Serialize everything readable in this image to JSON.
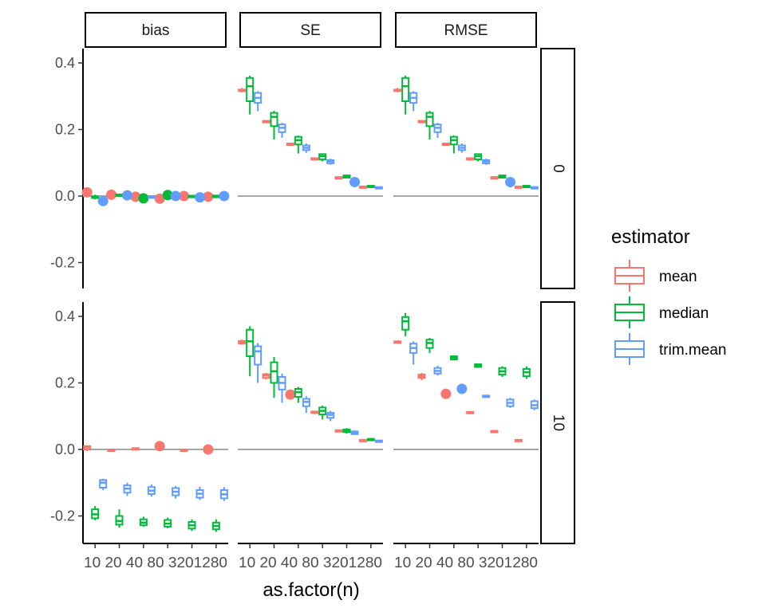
{
  "chart_data": {
    "type": "boxplot",
    "xlabel": "as.factor(n)",
    "ylabel": "",
    "categories": [
      "10",
      "20",
      "40",
      "80",
      "320",
      "1280"
    ],
    "x_tick_text": "10 20 40 80 3201280",
    "ylim": [
      -0.28,
      0.42
    ],
    "yticks": [
      0.4,
      0.2,
      0.0,
      -0.2
    ],
    "ytick_labels": [
      "0.4",
      "0.2",
      "0.0",
      "-0.2"
    ],
    "reference_line": 0,
    "col_facets": [
      "bias",
      "SE",
      "RMSE"
    ],
    "row_facets": [
      "0",
      "10"
    ],
    "legend": {
      "title": "estimator",
      "position": "right",
      "entries": [
        {
          "name": "mean",
          "color": "#F8766D"
        },
        {
          "name": "median",
          "color": "#00BA38"
        },
        {
          "name": "trim.mean",
          "color": "#619CFF"
        }
      ]
    },
    "panels": [
      {
        "col": "bias",
        "row": "0",
        "series": [
          {
            "name": "mean",
            "boxes": [
              [
                0.011,
                0.011,
                0.011,
                0.011,
                0.011
              ],
              [
                0.004,
                0.004,
                0.004,
                0.004,
                0.004
              ],
              [
                -0.002,
                -0.002,
                -0.002,
                -0.002,
                -0.002
              ],
              [
                -0.008,
                -0.008,
                -0.008,
                -0.008,
                -0.008
              ],
              [
                0.0,
                0.0,
                0.0,
                0.0,
                0.0
              ],
              [
                -0.002,
                -0.002,
                -0.002,
                -0.002,
                -0.002
              ]
            ]
          },
          {
            "name": "median",
            "boxes": [
              [
                -0.01,
                -0.006,
                -0.004,
                -0.001,
                0.004
              ],
              [
                0.003,
                0.003,
                0.004,
                0.005,
                0.006
              ],
              [
                -0.007,
                -0.007,
                -0.007,
                -0.007,
                -0.007
              ],
              [
                0.003,
                0.003,
                0.003,
                0.003,
                0.003
              ],
              [
                -0.001,
                -0.001,
                0.0,
                0.001,
                0.002
              ],
              [
                0.0,
                0.0,
                0.001,
                0.001,
                0.002
              ]
            ]
          },
          {
            "name": "trim.mean",
            "boxes": [
              [
                -0.015,
                -0.015,
                -0.015,
                -0.015,
                -0.015
              ],
              [
                0.002,
                0.002,
                0.002,
                0.003,
                0.003
              ],
              [
                -0.002,
                -0.002,
                -0.001,
                -0.001,
                0.0
              ],
              [
                0.0,
                0.0,
                0.0,
                0.001,
                0.001
              ],
              [
                -0.004,
                -0.004,
                -0.004,
                -0.004,
                -0.004
              ],
              [
                0.0,
                0.0,
                0.0,
                0.001,
                0.001
              ]
            ]
          }
        ]
      },
      {
        "col": "SE",
        "row": "0",
        "series": [
          {
            "name": "mean",
            "boxes": [
              [
                0.312,
                0.316,
                0.318,
                0.32,
                0.325
              ],
              [
                0.22,
                0.222,
                0.224,
                0.226,
                0.228
              ],
              [
                0.152,
                0.154,
                0.156,
                0.158,
                0.16
              ],
              [
                0.108,
                0.11,
                0.112,
                0.114,
                0.116
              ],
              [
                0.054,
                0.055,
                0.056,
                0.057,
                0.058
              ],
              [
                0.026,
                0.027,
                0.028,
                0.029,
                0.03
              ]
            ]
          },
          {
            "name": "median",
            "boxes": [
              [
                0.245,
                0.285,
                0.33,
                0.355,
                0.362
              ],
              [
                0.17,
                0.21,
                0.238,
                0.25,
                0.256
              ],
              [
                0.128,
                0.155,
                0.168,
                0.178,
                0.182
              ],
              [
                0.104,
                0.11,
                0.12,
                0.126,
                0.128
              ],
              [
                0.054,
                0.055,
                0.058,
                0.062,
                0.064
              ],
              [
                0.026,
                0.027,
                0.029,
                0.031,
                0.032
              ]
            ]
          },
          {
            "name": "trim.mean",
            "boxes": [
              [
                0.255,
                0.28,
                0.295,
                0.31,
                0.315
              ],
              [
                0.175,
                0.192,
                0.205,
                0.215,
                0.22
              ],
              [
                0.13,
                0.138,
                0.145,
                0.152,
                0.158
              ],
              [
                0.094,
                0.098,
                0.104,
                0.108,
                0.112
              ],
              [
                0.042,
                0.042,
                0.042,
                0.042,
                0.042
              ],
              [
                0.024,
                0.025,
                0.026,
                0.027,
                0.028
              ]
            ]
          }
        ]
      },
      {
        "col": "RMSE",
        "row": "0",
        "series": [
          {
            "name": "mean",
            "boxes": [
              [
                0.312,
                0.316,
                0.318,
                0.32,
                0.325
              ],
              [
                0.22,
                0.222,
                0.224,
                0.226,
                0.228
              ],
              [
                0.152,
                0.154,
                0.156,
                0.158,
                0.16
              ],
              [
                0.108,
                0.11,
                0.112,
                0.114,
                0.116
              ],
              [
                0.054,
                0.055,
                0.056,
                0.057,
                0.058
              ],
              [
                0.026,
                0.027,
                0.028,
                0.029,
                0.03
              ]
            ]
          },
          {
            "name": "median",
            "boxes": [
              [
                0.245,
                0.285,
                0.33,
                0.355,
                0.362
              ],
              [
                0.17,
                0.21,
                0.238,
                0.25,
                0.256
              ],
              [
                0.128,
                0.155,
                0.168,
                0.178,
                0.182
              ],
              [
                0.104,
                0.11,
                0.12,
                0.126,
                0.128
              ],
              [
                0.054,
                0.055,
                0.058,
                0.062,
                0.064
              ],
              [
                0.026,
                0.027,
                0.029,
                0.031,
                0.032
              ]
            ]
          },
          {
            "name": "trim.mean",
            "boxes": [
              [
                0.255,
                0.28,
                0.295,
                0.31,
                0.315
              ],
              [
                0.175,
                0.192,
                0.205,
                0.215,
                0.22
              ],
              [
                0.13,
                0.138,
                0.145,
                0.152,
                0.158
              ],
              [
                0.094,
                0.098,
                0.104,
                0.108,
                0.112
              ],
              [
                0.042,
                0.042,
                0.042,
                0.042,
                0.042
              ],
              [
                0.024,
                0.025,
                0.026,
                0.027,
                0.028
              ]
            ]
          }
        ]
      },
      {
        "col": "bias",
        "row": "10",
        "series": [
          {
            "name": "mean",
            "boxes": [
              [
                -0.005,
                0.0,
                0.006,
                0.01,
                0.012
              ],
              [
                -0.003,
                -0.002,
                -0.001,
                0.0,
                0.0
              ],
              [
                0.002,
                0.003,
                0.003,
                0.004,
                0.004
              ],
              [
                0.01,
                0.01,
                0.01,
                0.01,
                0.01
              ],
              [
                -0.002,
                -0.001,
                -0.001,
                0.0,
                0.0
              ],
              [
                0.0,
                0.0,
                0.0,
                0.0,
                0.0
              ]
            ]
          },
          {
            "name": "median",
            "boxes": [
              [
                -0.213,
                -0.207,
                -0.195,
                -0.18,
                -0.17
              ],
              [
                -0.235,
                -0.226,
                -0.215,
                -0.2,
                -0.18
              ],
              [
                -0.232,
                -0.228,
                -0.22,
                -0.21,
                -0.202
              ],
              [
                -0.237,
                -0.232,
                -0.223,
                -0.212,
                -0.205
              ],
              [
                -0.245,
                -0.238,
                -0.228,
                -0.218,
                -0.21
              ],
              [
                -0.248,
                -0.24,
                -0.23,
                -0.22,
                -0.21
              ]
            ]
          },
          {
            "name": "trim.mean",
            "boxes": [
              [
                -0.122,
                -0.115,
                -0.1,
                -0.092,
                -0.088
              ],
              [
                -0.14,
                -0.13,
                -0.118,
                -0.108,
                -0.1
              ],
              [
                -0.142,
                -0.134,
                -0.124,
                -0.113,
                -0.105
              ],
              [
                -0.148,
                -0.138,
                -0.127,
                -0.116,
                -0.11
              ],
              [
                -0.152,
                -0.145,
                -0.133,
                -0.122,
                -0.112
              ],
              [
                -0.155,
                -0.147,
                -0.135,
                -0.122,
                -0.113
              ]
            ]
          }
        ]
      },
      {
        "col": "SE",
        "row": "10",
        "series": [
          {
            "name": "mean",
            "boxes": [
              [
                0.315,
                0.318,
                0.322,
                0.326,
                0.33
              ],
              [
                0.21,
                0.215,
                0.222,
                0.226,
                0.23
              ],
              [
                0.165,
                0.165,
                0.165,
                0.165,
                0.165
              ],
              [
                0.108,
                0.11,
                0.112,
                0.114,
                0.116
              ],
              [
                0.052,
                0.054,
                0.056,
                0.058,
                0.06
              ],
              [
                0.026,
                0.027,
                0.028,
                0.029,
                0.03
              ]
            ]
          },
          {
            "name": "median",
            "boxes": [
              [
                0.22,
                0.28,
                0.325,
                0.36,
                0.37
              ],
              [
                0.155,
                0.2,
                0.235,
                0.262,
                0.278
              ],
              [
                0.14,
                0.158,
                0.172,
                0.182,
                0.188
              ],
              [
                0.09,
                0.105,
                0.116,
                0.126,
                0.132
              ],
              [
                0.048,
                0.052,
                0.056,
                0.06,
                0.064
              ],
              [
                0.027,
                0.028,
                0.03,
                0.032,
                0.034
              ]
            ]
          },
          {
            "name": "trim.mean",
            "boxes": [
              [
                0.2,
                0.255,
                0.295,
                0.31,
                0.32
              ],
              [
                0.14,
                0.18,
                0.2,
                0.218,
                0.228
              ],
              [
                0.11,
                0.13,
                0.143,
                0.152,
                0.16
              ],
              [
                0.085,
                0.095,
                0.104,
                0.11,
                0.116
              ],
              [
                0.044,
                0.046,
                0.05,
                0.054,
                0.058
              ],
              [
                0.024,
                0.025,
                0.026,
                0.027,
                0.028
              ]
            ]
          }
        ]
      },
      {
        "col": "RMSE",
        "row": "10",
        "series": [
          {
            "name": "mean",
            "boxes": [
              [
                0.318,
                0.32,
                0.322,
                0.325,
                0.328
              ],
              [
                0.208,
                0.215,
                0.22,
                0.225,
                0.23
              ],
              [
                0.167,
                0.167,
                0.167,
                0.167,
                0.167
              ],
              [
                0.109,
                0.11,
                0.112,
                0.113,
                0.114
              ],
              [
                0.052,
                0.053,
                0.055,
                0.056,
                0.057
              ],
              [
                0.026,
                0.027,
                0.028,
                0.029,
                0.03
              ]
            ]
          },
          {
            "name": "median",
            "boxes": [
              [
                0.34,
                0.36,
                0.385,
                0.398,
                0.41
              ],
              [
                0.29,
                0.305,
                0.32,
                0.33,
                0.335
              ],
              [
                0.268,
                0.27,
                0.275,
                0.28,
                0.282
              ],
              [
                0.245,
                0.248,
                0.252,
                0.256,
                0.258
              ],
              [
                0.218,
                0.225,
                0.235,
                0.245,
                0.25
              ],
              [
                0.212,
                0.22,
                0.232,
                0.242,
                0.25
              ]
            ]
          },
          {
            "name": "trim.mean",
            "boxes": [
              [
                0.255,
                0.29,
                0.305,
                0.318,
                0.325
              ],
              [
                0.222,
                0.228,
                0.236,
                0.245,
                0.252
              ],
              [
                0.182,
                0.182,
                0.182,
                0.182,
                0.182
              ],
              [
                0.16,
                0.16,
                0.161,
                0.162,
                0.162
              ],
              [
                0.125,
                0.13,
                0.14,
                0.15,
                0.155
              ],
              [
                0.118,
                0.124,
                0.133,
                0.145,
                0.15
              ]
            ]
          }
        ]
      }
    ]
  }
}
